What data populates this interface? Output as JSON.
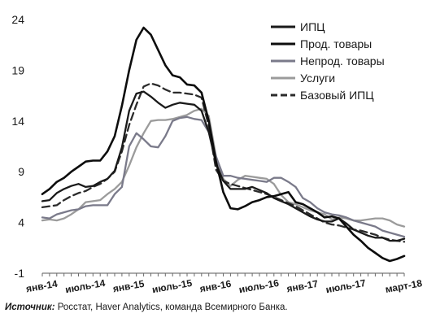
{
  "chart_data": {
    "type": "line",
    "x": [
      "янв-14",
      "фев-14",
      "мар-14",
      "апр-14",
      "май-14",
      "июн-14",
      "июль-14",
      "авг-14",
      "сен-14",
      "окт-14",
      "ноя-14",
      "дек-14",
      "янв-15",
      "фев-15",
      "мар-15",
      "апр-15",
      "май-15",
      "июн-15",
      "июль-15",
      "авг-15",
      "сен-15",
      "окт-15",
      "ноя-15",
      "дек-15",
      "янв-16",
      "фев-16",
      "мар-16",
      "апр-16",
      "май-16",
      "июн-16",
      "июль-16",
      "авг-16",
      "сен-16",
      "окт-16",
      "ноя-16",
      "дек-16",
      "янв-17",
      "фев-17",
      "мар-17",
      "апр-17",
      "май-17",
      "июн-17",
      "июль-17",
      "авг-17",
      "сен-17",
      "окт-17",
      "ноя-17",
      "дек-17",
      "янв-18",
      "фев-18",
      "март-18"
    ],
    "x_tick_labels": [
      {
        "label": "янв-14",
        "index": 0
      },
      {
        "label": "июль-14",
        "index": 6
      },
      {
        "label": "янв-15",
        "index": 12
      },
      {
        "label": "июль-15",
        "index": 18
      },
      {
        "label": "янв-16",
        "index": 24
      },
      {
        "label": "июль-16",
        "index": 30
      },
      {
        "label": "янв-17",
        "index": 36
      },
      {
        "label": "июль-17",
        "index": 42
      },
      {
        "label": "март-18",
        "index": 50
      }
    ],
    "y_ticks": [
      -1,
      4,
      9,
      14,
      19,
      24
    ],
    "ylim": [
      -1,
      24
    ],
    "grid": false,
    "legend_position": "top-right",
    "series": [
      {
        "name": "ИПЦ",
        "color": "#1a1a1a",
        "dash": "solid",
        "values": [
          6.1,
          6.2,
          6.9,
          7.3,
          7.6,
          7.8,
          7.5,
          7.6,
          8.0,
          8.3,
          9.1,
          11.4,
          15.0,
          16.7,
          16.9,
          16.4,
          15.8,
          15.3,
          15.6,
          15.8,
          15.7,
          15.6,
          15.0,
          12.9,
          9.8,
          8.1,
          7.3,
          7.3,
          7.3,
          7.5,
          7.2,
          6.9,
          6.4,
          6.1,
          5.8,
          5.4,
          5.0,
          4.6,
          4.3,
          4.1,
          4.1,
          4.4,
          3.9,
          3.3,
          3.0,
          2.7,
          2.5,
          2.5,
          2.2,
          2.2,
          2.4
        ]
      },
      {
        "name": "Прод. товары",
        "color": "#0d0d0d",
        "dash": "solid",
        "values": [
          6.8,
          7.3,
          8.0,
          8.4,
          9.0,
          9.5,
          10.0,
          10.1,
          10.1,
          11.0,
          12.5,
          15.5,
          19.0,
          22.0,
          23.2,
          22.5,
          21.0,
          19.5,
          18.5,
          18.3,
          17.6,
          17.5,
          16.8,
          14.0,
          10.0,
          7.0,
          5.4,
          5.3,
          5.6,
          6.0,
          6.2,
          6.5,
          6.6,
          6.8,
          7.0,
          6.0,
          5.8,
          5.4,
          5.0,
          4.5,
          4.6,
          4.4,
          3.6,
          2.8,
          2.2,
          1.5,
          1.0,
          0.5,
          0.2,
          0.4,
          0.7
        ]
      },
      {
        "name": "Непрод. товары",
        "color": "#7a7a8a",
        "dash": "solid",
        "values": [
          4.5,
          4.4,
          4.8,
          5.0,
          5.2,
          5.3,
          5.6,
          5.7,
          5.7,
          5.7,
          6.8,
          7.5,
          11.5,
          12.8,
          12.2,
          11.5,
          11.4,
          12.5,
          14.0,
          14.3,
          14.4,
          14.2,
          14.1,
          12.9,
          10.5,
          8.6,
          8.6,
          8.4,
          8.3,
          8.2,
          8.1,
          8.0,
          8.4,
          8.4,
          8.0,
          7.5,
          6.4,
          6.0,
          5.4,
          5.0,
          4.8,
          4.7,
          4.5,
          4.2,
          4.0,
          3.8,
          3.6,
          3.2,
          3.0,
          2.8,
          2.6
        ]
      },
      {
        "name": "Услуги",
        "color": "#9b9b9b",
        "dash": "solid",
        "values": [
          4.2,
          4.3,
          4.2,
          4.4,
          4.8,
          5.3,
          6.0,
          6.1,
          6.2,
          6.8,
          7.3,
          8.0,
          9.6,
          11.4,
          12.8,
          14.0,
          14.1,
          14.1,
          14.2,
          14.4,
          14.6,
          15.0,
          15.2,
          14.5,
          10.5,
          8.3,
          7.6,
          8.2,
          8.6,
          8.5,
          8.4,
          8.3,
          7.8,
          6.7,
          6.0,
          5.8,
          5.5,
          5.2,
          5.0,
          4.8,
          4.3,
          4.5,
          4.4,
          4.2,
          4.2,
          4.3,
          4.4,
          4.4,
          4.2,
          3.8,
          3.6
        ]
      },
      {
        "name": "Базовый ИПЦ",
        "color": "#2b2b2b",
        "dash": "dashed",
        "values": [
          5.5,
          5.6,
          5.7,
          6.2,
          6.6,
          6.9,
          7.1,
          7.5,
          7.8,
          8.3,
          9.0,
          11.0,
          13.6,
          15.6,
          17.4,
          17.7,
          17.5,
          17.1,
          16.8,
          16.8,
          16.7,
          16.6,
          16.3,
          13.5,
          9.2,
          8.1,
          7.8,
          7.6,
          7.4,
          7.2,
          7.0,
          6.8,
          6.5,
          6.2,
          5.9,
          5.6,
          5.2,
          4.8,
          4.4,
          4.0,
          3.8,
          3.7,
          3.5,
          3.3,
          3.2,
          3.0,
          2.8,
          2.5,
          2.3,
          2.2,
          2.1
        ]
      }
    ]
  },
  "source": {
    "label": "Источник:",
    "text": " Росстат, Haver Analytics, команда Всемирного Банка."
  }
}
